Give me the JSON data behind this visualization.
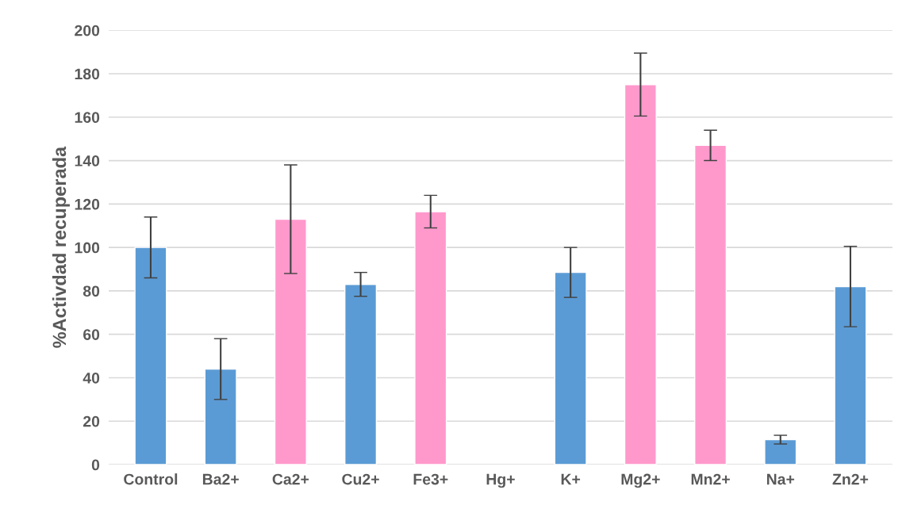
{
  "chart_data": {
    "type": "bar",
    "ylabel": "%Activdad recuperada",
    "categories": [
      "Control",
      "Ba2+",
      "Ca2+",
      "Cu2+",
      "Fe3+",
      "Hg+",
      "K+",
      "Mg2+",
      "Mn2+",
      "Na+",
      "Zn2+"
    ],
    "values": [
      100,
      44,
      113,
      83,
      116.5,
      null,
      88.5,
      175,
      147,
      11.5,
      82
    ],
    "errors": [
      14,
      14,
      25,
      5.5,
      7.5,
      null,
      11.5,
      14.5,
      7,
      2,
      18.5
    ],
    "colors": [
      "#5b9bd5",
      "#5b9bd5",
      "#ff99cc",
      "#5b9bd5",
      "#ff99cc",
      "#5b9bd5",
      "#5b9bd5",
      "#ff99cc",
      "#ff99cc",
      "#5b9bd5",
      "#5b9bd5"
    ],
    "ylim": [
      0,
      200
    ],
    "yticks": [
      0,
      20,
      40,
      60,
      80,
      100,
      120,
      140,
      160,
      180,
      200
    ],
    "grid": "y"
  }
}
